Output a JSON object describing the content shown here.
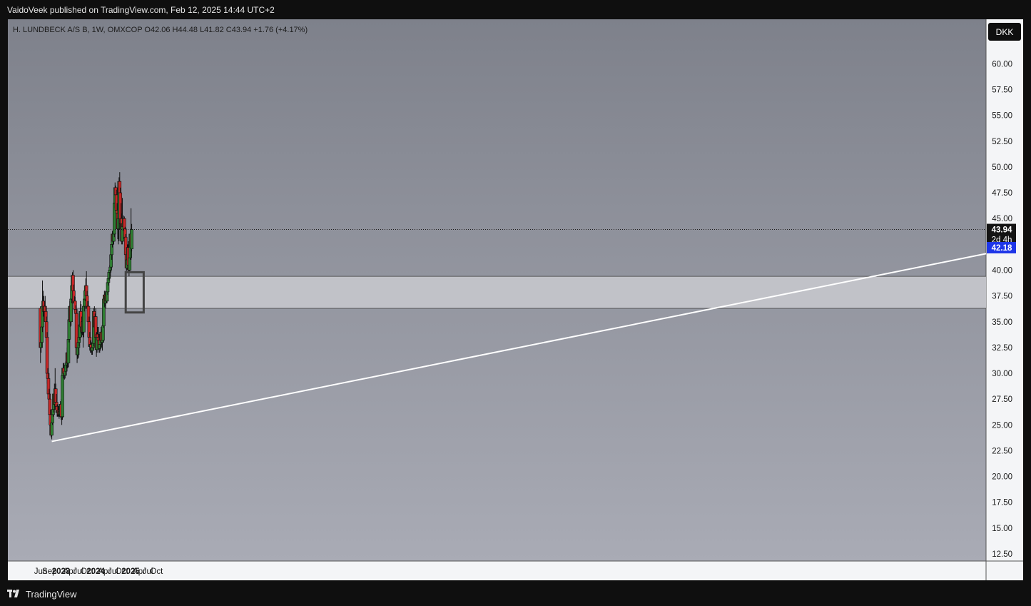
{
  "header": {
    "published_by": "VaidoVeek published on TradingView.com, Feb 12, 2025 14:44 UTC+2"
  },
  "footer": {
    "brand": "TradingView"
  },
  "chart_data": {
    "type": "candlestick",
    "legend": "H. LUNDBECK A/S B, 1W, OMXCOP  O42.06  H44.48  L41.82  C43.94  +1.76 (+4.17%)",
    "currency": "DKK",
    "y_ticks": [
      "60.00",
      "57.50",
      "55.00",
      "52.50",
      "50.00",
      "47.50",
      "45.00",
      "40.00",
      "37.50",
      "35.00",
      "32.50",
      "30.00",
      "27.50",
      "25.00",
      "22.50",
      "20.00",
      "17.50",
      "15.00",
      "12.50"
    ],
    "ylim": [
      12.5,
      61
    ],
    "x_ticks": [
      {
        "label": "Jun",
        "date": "2022-06-01",
        "year": false
      },
      {
        "label": "Sep",
        "date": "2022-09-01",
        "year": false
      },
      {
        "label": "2023",
        "date": "2023-01-01",
        "year": true
      },
      {
        "label": "Apr",
        "date": "2023-04-01",
        "year": false
      },
      {
        "label": "Jul",
        "date": "2023-07-01",
        "year": false
      },
      {
        "label": "Oct",
        "date": "2023-10-01",
        "year": false
      },
      {
        "label": "2024",
        "date": "2024-01-01",
        "year": true
      },
      {
        "label": "Apr",
        "date": "2024-04-01",
        "year": false
      },
      {
        "label": "Jul",
        "date": "2024-07-01",
        "year": false
      },
      {
        "label": "Oct",
        "date": "2024-10-01",
        "year": false
      },
      {
        "label": "2025",
        "date": "2025-01-01",
        "year": true
      },
      {
        "label": "Apr",
        "date": "2025-04-01",
        "year": false
      },
      {
        "label": "Jul",
        "date": "2025-07-01",
        "year": false
      },
      {
        "label": "Oct",
        "date": "2025-10-01",
        "year": false
      }
    ],
    "last_price": "43.94",
    "countdown": "2d 4h",
    "ma_value": "42.18",
    "last_close": 43.94,
    "ma_level": 42.18,
    "zone": {
      "low": 36.3,
      "high": 39.4
    },
    "trendline": {
      "start_date": "2022-09-26",
      "start_price": 23.4,
      "end_date": "2025-11-24",
      "end_price": 41.6
    },
    "highlight_box": {
      "start_date": "2024-11-11",
      "end_date": "2025-05-19",
      "low": 35.9,
      "high": 39.8
    },
    "colors": {
      "up": "#2e7d32",
      "down": "#c62828",
      "wick": "#111111",
      "trendline": "#ffffff",
      "box_border": "#444444"
    },
    "start_date": "2022-05-30",
    "series": [
      {
        "o": 36.3,
        "h": 36.5,
        "l": 31.0,
        "c": 32.5
      },
      {
        "o": 32.5,
        "h": 34.0,
        "l": 32.0,
        "c": 33.0
      },
      {
        "o": 33.0,
        "h": 35.0,
        "l": 32.5,
        "c": 34.5
      },
      {
        "o": 34.5,
        "h": 39.0,
        "l": 34.0,
        "c": 36.5
      },
      {
        "o": 36.5,
        "h": 38.0,
        "l": 35.5,
        "c": 37.0
      },
      {
        "o": 37.0,
        "h": 37.5,
        "l": 35.0,
        "c": 36.0
      },
      {
        "o": 36.0,
        "h": 37.0,
        "l": 35.5,
        "c": 36.5
      },
      {
        "o": 36.5,
        "h": 37.5,
        "l": 35.0,
        "c": 36.0
      },
      {
        "o": 36.0,
        "h": 36.5,
        "l": 34.5,
        "c": 35.0
      },
      {
        "o": 35.0,
        "h": 35.5,
        "l": 33.5,
        "c": 33.5
      },
      {
        "o": 33.5,
        "h": 34.0,
        "l": 29.0,
        "c": 30.0
      },
      {
        "o": 30.0,
        "h": 30.5,
        "l": 29.0,
        "c": 29.5
      },
      {
        "o": 29.5,
        "h": 30.0,
        "l": 27.5,
        "c": 28.0
      },
      {
        "o": 28.0,
        "h": 28.5,
        "l": 26.5,
        "c": 27.5
      },
      {
        "o": 27.5,
        "h": 28.0,
        "l": 25.5,
        "c": 26.0
      },
      {
        "o": 26.0,
        "h": 26.5,
        "l": 24.5,
        "c": 25.0
      },
      {
        "o": 25.0,
        "h": 25.5,
        "l": 23.8,
        "c": 24.0
      },
      {
        "o": 24.0,
        "h": 25.5,
        "l": 23.6,
        "c": 25.2
      },
      {
        "o": 25.2,
        "h": 26.5,
        "l": 25.0,
        "c": 26.0
      },
      {
        "o": 26.0,
        "h": 27.0,
        "l": 25.8,
        "c": 26.5
      },
      {
        "o": 26.5,
        "h": 28.5,
        "l": 26.2,
        "c": 28.0
      },
      {
        "o": 28.0,
        "h": 29.0,
        "l": 26.5,
        "c": 27.0
      },
      {
        "o": 27.0,
        "h": 30.5,
        "l": 26.8,
        "c": 28.5
      },
      {
        "o": 28.5,
        "h": 29.0,
        "l": 26.5,
        "c": 27.2
      },
      {
        "o": 27.2,
        "h": 28.0,
        "l": 26.2,
        "c": 26.8
      },
      {
        "o": 26.8,
        "h": 27.0,
        "l": 25.8,
        "c": 26.2
      },
      {
        "o": 26.2,
        "h": 27.0,
        "l": 25.8,
        "c": 26.4
      },
      {
        "o": 26.4,
        "h": 26.8,
        "l": 25.8,
        "c": 26.0
      },
      {
        "o": 26.0,
        "h": 26.6,
        "l": 25.6,
        "c": 26.3
      },
      {
        "o": 26.3,
        "h": 26.8,
        "l": 25.8,
        "c": 26.0
      },
      {
        "o": 26.0,
        "h": 27.3,
        "l": 25.8,
        "c": 27.0
      },
      {
        "o": 27.0,
        "h": 27.5,
        "l": 25.5,
        "c": 25.8
      },
      {
        "o": 25.8,
        "h": 26.3,
        "l": 25.0,
        "c": 25.8
      },
      {
        "o": 25.8,
        "h": 30.0,
        "l": 25.5,
        "c": 29.8
      },
      {
        "o": 29.8,
        "h": 31.0,
        "l": 29.5,
        "c": 30.5
      },
      {
        "o": 30.5,
        "h": 31.0,
        "l": 29.8,
        "c": 30.0
      },
      {
        "o": 30.0,
        "h": 30.5,
        "l": 29.4,
        "c": 29.8
      },
      {
        "o": 29.8,
        "h": 31.0,
        "l": 29.5,
        "c": 30.2
      },
      {
        "o": 30.2,
        "h": 31.2,
        "l": 29.8,
        "c": 30.8
      },
      {
        "o": 30.8,
        "h": 31.2,
        "l": 30.2,
        "c": 31.0
      },
      {
        "o": 31.0,
        "h": 32.5,
        "l": 30.5,
        "c": 32.0
      },
      {
        "o": 32.0,
        "h": 32.5,
        "l": 30.5,
        "c": 31.0
      },
      {
        "o": 31.0,
        "h": 33.5,
        "l": 30.6,
        "c": 33.3
      },
      {
        "o": 33.3,
        "h": 35.5,
        "l": 33.0,
        "c": 35.2
      },
      {
        "o": 35.2,
        "h": 37.0,
        "l": 35.0,
        "c": 36.5
      },
      {
        "o": 36.5,
        "h": 37.0,
        "l": 34.5,
        "c": 35.0
      },
      {
        "o": 35.0,
        "h": 37.5,
        "l": 34.6,
        "c": 37.2
      },
      {
        "o": 37.2,
        "h": 39.2,
        "l": 36.8,
        "c": 38.5
      },
      {
        "o": 38.5,
        "h": 39.8,
        "l": 37.6,
        "c": 39.5
      },
      {
        "o": 39.5,
        "h": 40.0,
        "l": 37.5,
        "c": 38.0
      },
      {
        "o": 38.0,
        "h": 38.6,
        "l": 36.4,
        "c": 36.8
      },
      {
        "o": 36.8,
        "h": 37.5,
        "l": 36.0,
        "c": 37.0
      },
      {
        "o": 37.0,
        "h": 37.4,
        "l": 35.8,
        "c": 36.2
      },
      {
        "o": 36.2,
        "h": 36.6,
        "l": 35.5,
        "c": 35.8
      },
      {
        "o": 35.8,
        "h": 36.2,
        "l": 32.0,
        "c": 32.5
      },
      {
        "o": 32.5,
        "h": 33.0,
        "l": 31.0,
        "c": 31.8
      },
      {
        "o": 31.8,
        "h": 33.0,
        "l": 31.4,
        "c": 32.5
      },
      {
        "o": 32.5,
        "h": 33.5,
        "l": 31.5,
        "c": 33.0
      },
      {
        "o": 33.0,
        "h": 34.0,
        "l": 32.6,
        "c": 33.5
      },
      {
        "o": 33.5,
        "h": 35.0,
        "l": 33.2,
        "c": 34.7
      },
      {
        "o": 34.7,
        "h": 37.0,
        "l": 34.5,
        "c": 36.0
      },
      {
        "o": 36.0,
        "h": 36.7,
        "l": 33.8,
        "c": 34.5
      },
      {
        "o": 34.5,
        "h": 35.5,
        "l": 33.5,
        "c": 34.0
      },
      {
        "o": 34.0,
        "h": 35.5,
        "l": 33.7,
        "c": 35.0
      },
      {
        "o": 35.0,
        "h": 35.5,
        "l": 32.5,
        "c": 34.0
      },
      {
        "o": 34.0,
        "h": 37.0,
        "l": 33.5,
        "c": 36.5
      },
      {
        "o": 36.5,
        "h": 37.5,
        "l": 36.0,
        "c": 37.2
      },
      {
        "o": 37.2,
        "h": 38.5,
        "l": 37.0,
        "c": 38.0
      },
      {
        "o": 38.0,
        "h": 39.2,
        "l": 37.5,
        "c": 38.5
      },
      {
        "o": 38.5,
        "h": 39.9,
        "l": 37.0,
        "c": 37.5
      },
      {
        "o": 37.5,
        "h": 38.0,
        "l": 36.0,
        "c": 36.3
      },
      {
        "o": 36.3,
        "h": 37.0,
        "l": 35.8,
        "c": 36.5
      },
      {
        "o": 36.5,
        "h": 37.0,
        "l": 34.5,
        "c": 35.0
      },
      {
        "o": 35.0,
        "h": 35.5,
        "l": 32.8,
        "c": 33.5
      },
      {
        "o": 33.5,
        "h": 34.0,
        "l": 32.2,
        "c": 32.6
      },
      {
        "o": 32.6,
        "h": 33.2,
        "l": 32.0,
        "c": 32.8
      },
      {
        "o": 32.8,
        "h": 33.2,
        "l": 32.0,
        "c": 32.5
      },
      {
        "o": 32.5,
        "h": 33.0,
        "l": 31.8,
        "c": 32.2
      },
      {
        "o": 32.2,
        "h": 32.8,
        "l": 31.8,
        "c": 32.5
      },
      {
        "o": 32.5,
        "h": 33.2,
        "l": 32.3,
        "c": 32.9
      },
      {
        "o": 32.9,
        "h": 36.3,
        "l": 32.6,
        "c": 36.0
      },
      {
        "o": 36.0,
        "h": 36.5,
        "l": 34.0,
        "c": 34.5
      },
      {
        "o": 34.5,
        "h": 35.8,
        "l": 34.0,
        "c": 35.5
      },
      {
        "o": 35.5,
        "h": 36.3,
        "l": 33.0,
        "c": 33.5
      },
      {
        "o": 33.5,
        "h": 34.0,
        "l": 31.6,
        "c": 32.3
      },
      {
        "o": 32.3,
        "h": 34.0,
        "l": 32.0,
        "c": 33.8
      },
      {
        "o": 33.8,
        "h": 34.5,
        "l": 33.0,
        "c": 33.5
      },
      {
        "o": 33.5,
        "h": 34.5,
        "l": 32.5,
        "c": 33.2
      },
      {
        "o": 33.2,
        "h": 33.8,
        "l": 32.0,
        "c": 32.4
      },
      {
        "o": 32.4,
        "h": 33.2,
        "l": 32.0,
        "c": 32.8
      },
      {
        "o": 32.8,
        "h": 33.5,
        "l": 32.2,
        "c": 33.2
      },
      {
        "o": 33.2,
        "h": 34.5,
        "l": 32.8,
        "c": 34.0
      },
      {
        "o": 34.0,
        "h": 34.3,
        "l": 32.5,
        "c": 33.0
      },
      {
        "o": 33.0,
        "h": 33.8,
        "l": 32.2,
        "c": 33.2
      },
      {
        "o": 33.2,
        "h": 35.0,
        "l": 33.0,
        "c": 34.6
      },
      {
        "o": 34.6,
        "h": 37.5,
        "l": 34.4,
        "c": 37.2
      },
      {
        "o": 37.2,
        "h": 38.0,
        "l": 36.4,
        "c": 37.6
      },
      {
        "o": 37.6,
        "h": 38.0,
        "l": 36.5,
        "c": 36.8
      },
      {
        "o": 36.8,
        "h": 37.8,
        "l": 36.3,
        "c": 37.5
      },
      {
        "o": 37.5,
        "h": 38.0,
        "l": 36.8,
        "c": 37.0
      },
      {
        "o": 37.0,
        "h": 38.0,
        "l": 36.8,
        "c": 37.9
      },
      {
        "o": 37.9,
        "h": 39.0,
        "l": 37.6,
        "c": 38.8
      },
      {
        "o": 38.8,
        "h": 39.5,
        "l": 38.5,
        "c": 39.2
      },
      {
        "o": 39.2,
        "h": 40.0,
        "l": 39.0,
        "c": 39.8
      },
      {
        "o": 39.8,
        "h": 40.5,
        "l": 39.2,
        "c": 40.0
      },
      {
        "o": 40.0,
        "h": 40.7,
        "l": 39.4,
        "c": 40.3
      },
      {
        "o": 40.3,
        "h": 41.8,
        "l": 40.0,
        "c": 41.5
      },
      {
        "o": 41.5,
        "h": 43.0,
        "l": 41.0,
        "c": 42.5
      },
      {
        "o": 42.5,
        "h": 43.8,
        "l": 42.2,
        "c": 43.5
      },
      {
        "o": 43.5,
        "h": 44.0,
        "l": 42.5,
        "c": 42.8
      },
      {
        "o": 42.8,
        "h": 44.0,
        "l": 42.5,
        "c": 43.5
      },
      {
        "o": 43.5,
        "h": 47.0,
        "l": 43.2,
        "c": 46.5
      },
      {
        "o": 46.5,
        "h": 48.5,
        "l": 46.0,
        "c": 48.0
      },
      {
        "o": 48.0,
        "h": 48.2,
        "l": 46.8,
        "c": 47.3
      },
      {
        "o": 47.3,
        "h": 47.8,
        "l": 45.5,
        "c": 45.8
      },
      {
        "o": 45.8,
        "h": 46.5,
        "l": 45.0,
        "c": 45.5
      },
      {
        "o": 45.5,
        "h": 46.0,
        "l": 43.0,
        "c": 44.0
      },
      {
        "o": 44.0,
        "h": 45.0,
        "l": 42.5,
        "c": 45.0
      },
      {
        "o": 45.0,
        "h": 49.0,
        "l": 42.8,
        "c": 48.6
      },
      {
        "o": 48.6,
        "h": 49.5,
        "l": 46.8,
        "c": 47.5
      },
      {
        "o": 47.5,
        "h": 48.0,
        "l": 44.0,
        "c": 44.5
      },
      {
        "o": 44.5,
        "h": 46.5,
        "l": 43.5,
        "c": 45.0
      },
      {
        "o": 45.0,
        "h": 45.5,
        "l": 42.5,
        "c": 42.8
      },
      {
        "o": 42.8,
        "h": 47.0,
        "l": 42.5,
        "c": 44.5
      },
      {
        "o": 44.5,
        "h": 45.0,
        "l": 43.8,
        "c": 44.2
      },
      {
        "o": 44.2,
        "h": 45.3,
        "l": 43.0,
        "c": 45.0
      },
      {
        "o": 45.0,
        "h": 45.2,
        "l": 43.5,
        "c": 44.0
      },
      {
        "o": 44.0,
        "h": 44.2,
        "l": 42.8,
        "c": 43.2
      },
      {
        "o": 43.2,
        "h": 43.5,
        "l": 41.0,
        "c": 41.5
      },
      {
        "o": 41.5,
        "h": 41.8,
        "l": 39.8,
        "c": 40.2
      },
      {
        "o": 40.2,
        "h": 41.5,
        "l": 40.0,
        "c": 41.0
      },
      {
        "o": 41.0,
        "h": 42.5,
        "l": 40.7,
        "c": 42.2
      },
      {
        "o": 42.2,
        "h": 42.8,
        "l": 39.8,
        "c": 40.5
      },
      {
        "o": 40.5,
        "h": 41.0,
        "l": 39.4,
        "c": 40.0
      },
      {
        "o": 40.0,
        "h": 41.5,
        "l": 39.8,
        "c": 41.2
      },
      {
        "o": 41.2,
        "h": 44.0,
        "l": 41.0,
        "c": 43.5
      },
      {
        "o": 43.5,
        "h": 46.0,
        "l": 41.0,
        "c": 42.2
      },
      {
        "o": 42.06,
        "h": 44.48,
        "l": 41.82,
        "c": 43.94
      }
    ]
  }
}
